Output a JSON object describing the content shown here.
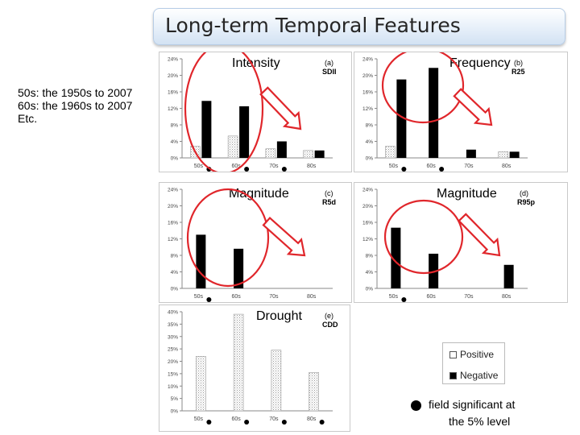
{
  "slide_title": "Long-term Temporal Features",
  "note_lines": [
    "50s: the 1950s to 2007",
    "60s: the 1960s to 2007",
    "Etc."
  ],
  "legend": {
    "positive": "Positive",
    "negative": "Negative"
  },
  "significance_note": {
    "line1": "field significant at",
    "line2": "the 5% level"
  },
  "colors": {
    "negative": "#000000",
    "positive": "#ffffff",
    "circle": "#e0262b",
    "arrow": "#e0262b",
    "arrow_fill": "#ffffff"
  },
  "chart_data": [
    {
      "type": "bar",
      "id": "a",
      "label": "Intensity",
      "tag": "(a)",
      "index": "SDII",
      "categories": [
        "50s",
        "60s",
        "70s",
        "80s"
      ],
      "series": [
        {
          "name": "Positive",
          "values": [
            2.8,
            5.3,
            2.2,
            1.8
          ]
        },
        {
          "name": "Negative",
          "values": [
            13.8,
            12.5,
            4.0,
            1.8
          ]
        }
      ],
      "yticks": [
        "0%",
        "4%",
        "8%",
        "12%",
        "16%",
        "20%",
        "24%"
      ],
      "ylim": [
        0,
        24
      ],
      "significant": [
        true,
        true,
        true,
        false
      ]
    },
    {
      "type": "bar",
      "id": "b",
      "label": "Frequency",
      "tag": "(b)",
      "index": "R25",
      "categories": [
        "50s",
        "60s",
        "70s",
        "80s"
      ],
      "series": [
        {
          "name": "Positive",
          "values": [
            2.8,
            0,
            0,
            1.5
          ]
        },
        {
          "name": "Negative",
          "values": [
            19.0,
            21.8,
            2.0,
            1.5
          ]
        }
      ],
      "yticks": [
        "0%",
        "4%",
        "8%",
        "12%",
        "16%",
        "20%",
        "24%"
      ],
      "ylim": [
        0,
        24
      ],
      "significant": [
        true,
        true,
        false,
        false
      ]
    },
    {
      "type": "bar",
      "id": "c",
      "label": "Magnitude",
      "tag": "(c)",
      "index": "R5d",
      "categories": [
        "50s",
        "60s",
        "70s",
        "80s"
      ],
      "series": [
        {
          "name": "Positive",
          "values": [
            0,
            0,
            0,
            0
          ]
        },
        {
          "name": "Negative",
          "values": [
            13.0,
            9.6,
            0,
            0
          ]
        }
      ],
      "yticks": [
        "0%",
        "4%",
        "8%",
        "12%",
        "16%",
        "20%",
        "24%"
      ],
      "ylim": [
        0,
        24
      ],
      "significant": [
        true,
        false,
        false,
        false
      ]
    },
    {
      "type": "bar",
      "id": "d",
      "label": "Magnitude",
      "tag": "(d)",
      "index": "R95p",
      "categories": [
        "50s",
        "60s",
        "70s",
        "80s"
      ],
      "series": [
        {
          "name": "Positive",
          "values": [
            0,
            0,
            0,
            0
          ]
        },
        {
          "name": "Negative",
          "values": [
            14.7,
            8.4,
            0,
            5.7
          ]
        }
      ],
      "yticks": [
        "0%",
        "4%",
        "8%",
        "12%",
        "16%",
        "20%",
        "24%"
      ],
      "ylim": [
        0,
        24
      ],
      "significant": [
        true,
        false,
        false,
        false
      ]
    },
    {
      "type": "bar",
      "id": "e",
      "label": "Drought",
      "tag": "(e)",
      "index": "CDD",
      "categories": [
        "50s",
        "60s",
        "70s",
        "80s"
      ],
      "series": [
        {
          "name": "Positive",
          "values": [
            22.0,
            39.0,
            24.5,
            15.5
          ]
        },
        {
          "name": "Negative",
          "values": [
            0,
            0,
            0,
            0
          ]
        }
      ],
      "yticks": [
        "0%",
        "5%",
        "10%",
        "15%",
        "20%",
        "25%",
        "30%",
        "35%",
        "40%"
      ],
      "ylim": [
        0,
        40
      ],
      "significant": [
        true,
        true,
        true,
        true
      ]
    }
  ]
}
